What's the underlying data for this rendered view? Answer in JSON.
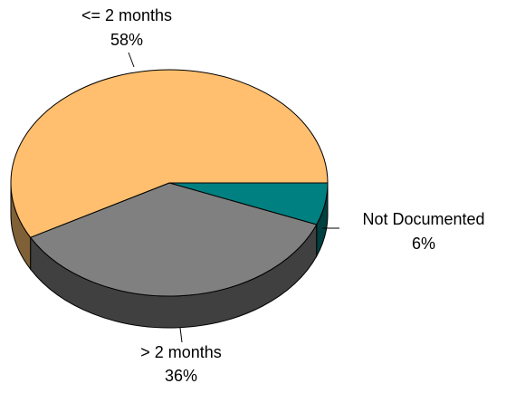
{
  "chart_data": {
    "type": "pie",
    "categories": [
      "<= 2 months",
      "> 2 months",
      "Not Documented"
    ],
    "values": [
      58,
      36,
      6
    ],
    "value_labels": [
      "58%",
      "36%",
      "6%"
    ],
    "colors": [
      "#ffbf6e",
      "#808080",
      "#008080"
    ]
  }
}
